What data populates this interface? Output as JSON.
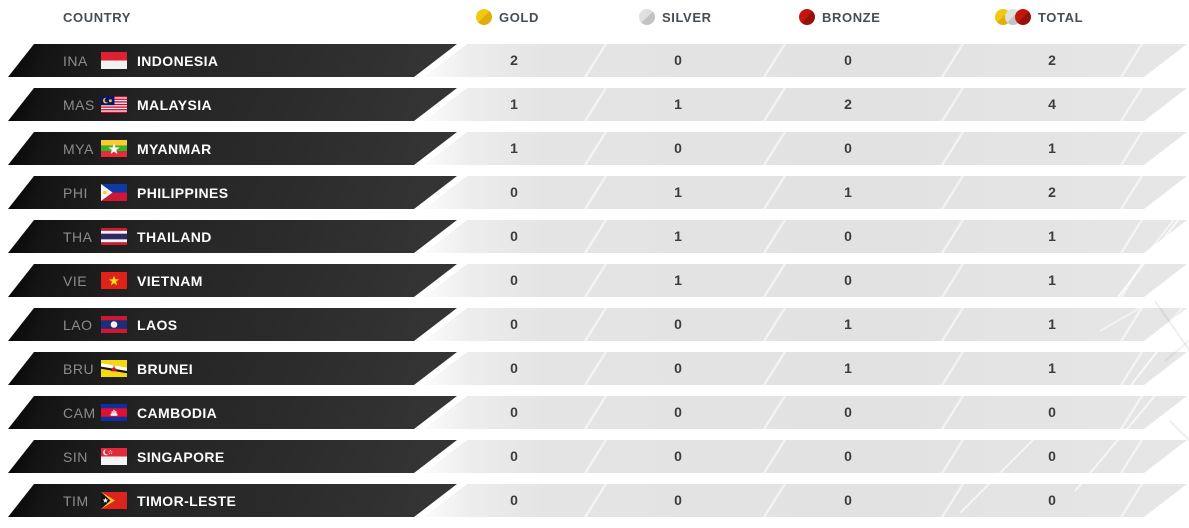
{
  "header": {
    "country_label": "COUNTRY",
    "medal_columns": [
      {
        "key": "gold",
        "label": "GOLD",
        "icon": "gold-medal-icon"
      },
      {
        "key": "silver",
        "label": "SILVER",
        "icon": "silver-medal-icon"
      },
      {
        "key": "bronze",
        "label": "BRONZE",
        "icon": "bronze-medal-icon"
      },
      {
        "key": "total",
        "label": "TOTAL",
        "icon": "total-medals-icon"
      }
    ]
  },
  "rows": [
    {
      "code": "INA",
      "name": "INDONESIA",
      "flag": "indonesia-flag",
      "gold": "2",
      "silver": "0",
      "bronze": "0",
      "total": "2"
    },
    {
      "code": "MAS",
      "name": "MALAYSIA",
      "flag": "malaysia-flag",
      "gold": "1",
      "silver": "1",
      "bronze": "2",
      "total": "4"
    },
    {
      "code": "MYA",
      "name": "MYANMAR",
      "flag": "myanmar-flag",
      "gold": "1",
      "silver": "0",
      "bronze": "0",
      "total": "1"
    },
    {
      "code": "PHI",
      "name": "PHILIPPINES",
      "flag": "philippines-flag",
      "gold": "0",
      "silver": "1",
      "bronze": "1",
      "total": "2"
    },
    {
      "code": "THA",
      "name": "THAILAND",
      "flag": "thailand-flag",
      "gold": "0",
      "silver": "1",
      "bronze": "0",
      "total": "1"
    },
    {
      "code": "VIE",
      "name": "VIETNAM",
      "flag": "vietnam-flag",
      "gold": "0",
      "silver": "1",
      "bronze": "0",
      "total": "1"
    },
    {
      "code": "LAO",
      "name": "LAOS",
      "flag": "laos-flag",
      "gold": "0",
      "silver": "0",
      "bronze": "1",
      "total": "1"
    },
    {
      "code": "BRU",
      "name": "BRUNEI",
      "flag": "brunei-flag",
      "gold": "0",
      "silver": "0",
      "bronze": "1",
      "total": "1"
    },
    {
      "code": "CAM",
      "name": "CAMBODIA",
      "flag": "cambodia-flag",
      "gold": "0",
      "silver": "0",
      "bronze": "0",
      "total": "0"
    },
    {
      "code": "SIN",
      "name": "SINGAPORE",
      "flag": "singapore-flag",
      "gold": "0",
      "silver": "0",
      "bronze": "0",
      "total": "0"
    },
    {
      "code": "TIM",
      "name": "TIMOR-LESTE",
      "flag": "timor-leste-flag",
      "gold": "0",
      "silver": "0",
      "bronze": "0",
      "total": "0"
    }
  ],
  "colors": {
    "medals": {
      "gold": [
        "#f3c814",
        "#dfae0a"
      ],
      "silver": [
        "#e0e0e0",
        "#c3c3c3"
      ],
      "bronze": [
        "#c4170c",
        "#97100a"
      ]
    },
    "bar_dark": "#262626",
    "band_gray": "#e2e2e2",
    "header_text": "#474d57",
    "count_text": "#3c3c3c",
    "code_text": "#8c8c8c",
    "name_text": "#fdfdfd"
  }
}
